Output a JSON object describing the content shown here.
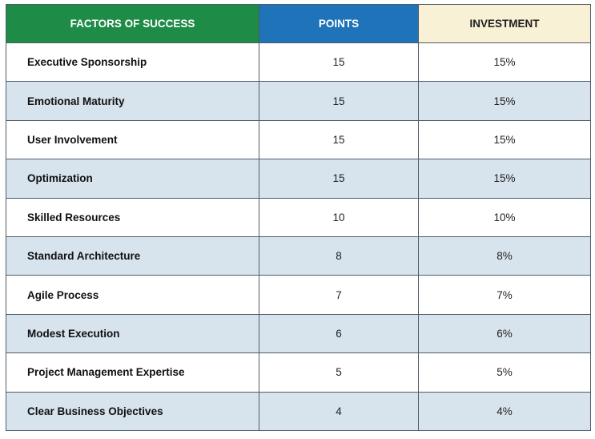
{
  "table": {
    "headers": [
      "FACTORS OF SUCCESS",
      "POINTS",
      "INVESTMENT"
    ],
    "rows": [
      {
        "factor": "Executive Sponsorship",
        "points": "15",
        "investment": "15%"
      },
      {
        "factor": "Emotional Maturity",
        "points": "15",
        "investment": "15%"
      },
      {
        "factor": "User Involvement",
        "points": "15",
        "investment": "15%"
      },
      {
        "factor": "Optimization",
        "points": "15",
        "investment": "15%"
      },
      {
        "factor": "Skilled Resources",
        "points": "10",
        "investment": "10%"
      },
      {
        "factor": "Standard Architecture",
        "points": "8",
        "investment": "8%"
      },
      {
        "factor": "Agile Process",
        "points": "7",
        "investment": "7%"
      },
      {
        "factor": "Modest Execution",
        "points": "6",
        "investment": "6%"
      },
      {
        "factor": "Project Management Expertise",
        "points": "5",
        "investment": "5%"
      },
      {
        "factor": "Clear Business Objectives",
        "points": "4",
        "investment": "4%"
      }
    ]
  },
  "colors": {
    "header_factors": "#1e8b46",
    "header_points": "#1f73b8",
    "header_investment": "#f8f1d6",
    "row_alt": "#d7e3ed",
    "border": "#4f5b66"
  }
}
